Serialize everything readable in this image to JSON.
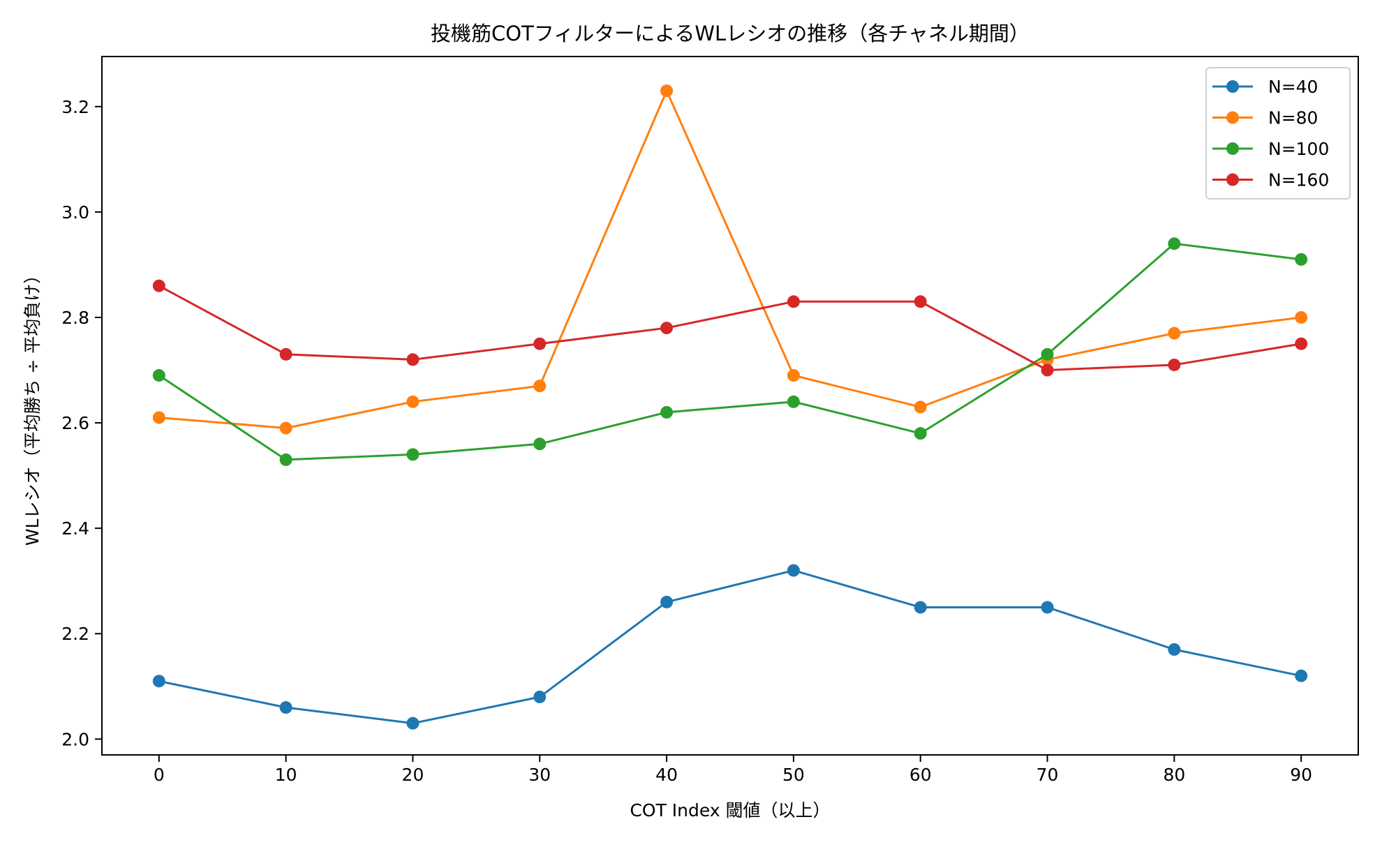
{
  "chart_data": {
    "type": "line",
    "title": "投機筋COTフィルターによるWLレシオの推移（各チャネル期間）",
    "xlabel": "COT Index 閾値（以上）",
    "ylabel": "WLレシオ（平均勝ち ÷ 平均負け）",
    "x": [
      0,
      10,
      20,
      30,
      40,
      50,
      60,
      70,
      80,
      90
    ],
    "xticks": [
      "0",
      "10",
      "20",
      "30",
      "40",
      "50",
      "60",
      "70",
      "80",
      "90"
    ],
    "yticks": [
      "2.0",
      "2.2",
      "2.4",
      "2.6",
      "2.8",
      "3.0",
      "3.2"
    ],
    "xlim": [
      -4.5,
      94.5
    ],
    "ylim": [
      1.97,
      3.295
    ],
    "grid": false,
    "legend_position": "top-right",
    "series": [
      {
        "name": "N=40",
        "color": "#1f77b4",
        "values": [
          2.11,
          2.06,
          2.03,
          2.08,
          2.26,
          2.32,
          2.25,
          2.25,
          2.17,
          2.12
        ]
      },
      {
        "name": "N=80",
        "color": "#ff7f0e",
        "values": [
          2.61,
          2.59,
          2.64,
          2.67,
          3.23,
          2.69,
          2.63,
          2.72,
          2.77,
          2.8
        ]
      },
      {
        "name": "N=100",
        "color": "#2ca02c",
        "values": [
          2.69,
          2.53,
          2.54,
          2.56,
          2.62,
          2.64,
          2.58,
          2.73,
          2.94,
          2.91
        ]
      },
      {
        "name": "N=160",
        "color": "#d62728",
        "values": [
          2.86,
          2.73,
          2.72,
          2.75,
          2.78,
          2.83,
          2.83,
          2.7,
          2.71,
          2.75
        ]
      }
    ]
  }
}
